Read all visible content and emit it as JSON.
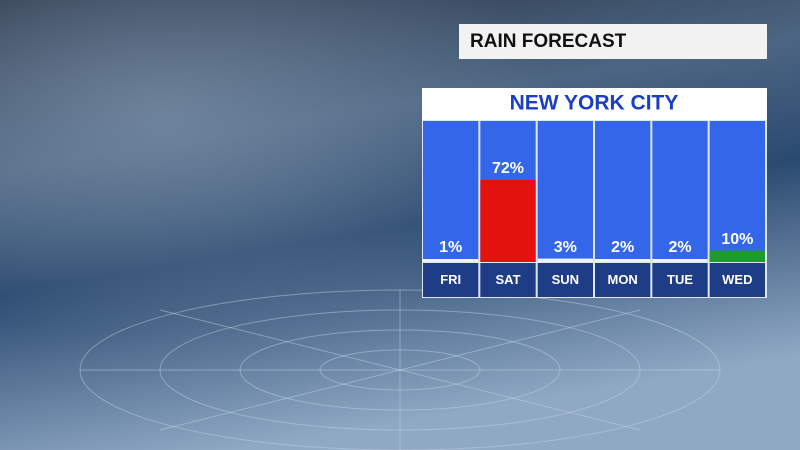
{
  "chart_data": {
    "type": "bar",
    "title": "RAIN FORECAST",
    "subtitle": "NEW YORK CITY",
    "categories": [
      "FRI",
      "SAT",
      "SUN",
      "MON",
      "TUE",
      "WED"
    ],
    "values": [
      1,
      72,
      3,
      2,
      2,
      10
    ],
    "value_labels": [
      "1%",
      "72%",
      "3%",
      "2%",
      "2%",
      "10%"
    ],
    "colors": [
      "#eef2fa",
      "#e3120f",
      "#eef2fa",
      "#eef2fa",
      "#eef2fa",
      "#1f9a2e"
    ]
  }
}
